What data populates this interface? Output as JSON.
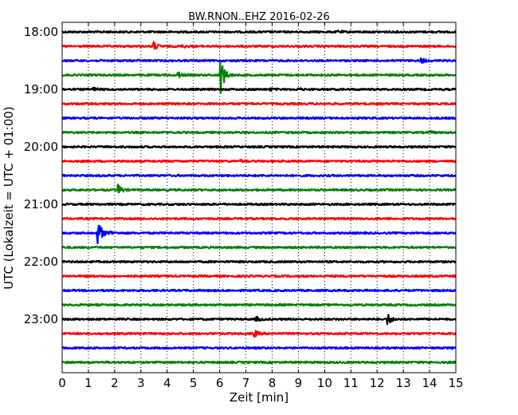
{
  "chart_data": {
    "type": "line",
    "title": "BW.RNON..EHZ 2016-02-26",
    "xlabel": "Zeit  [min]",
    "ylabel": "UTC (Lokalzeit = UTC + 01:00)",
    "xlim": [
      0,
      15
    ],
    "x_ticks": [
      "0",
      "1",
      "2",
      "3",
      "4",
      "5",
      "6",
      "7",
      "8",
      "9",
      "10",
      "11",
      "12",
      "13",
      "14",
      "15"
    ],
    "y_ticks": [
      "18:00",
      "19:00",
      "20:00",
      "21:00",
      "22:00",
      "23:00"
    ],
    "grid": "vertical dotted",
    "trace_colors": [
      "#000000",
      "#ff0000",
      "#0000ff",
      "#008000"
    ],
    "series": [
      {
        "start": "18:00",
        "color": "#000000",
        "events": [
          {
            "minute": 10.5,
            "amp": 0.1
          }
        ]
      },
      {
        "start": "18:15",
        "color": "#ff0000",
        "events": [
          {
            "minute": 3.5,
            "amp": 0.35
          },
          {
            "minute": 4.6,
            "amp": 0.1
          }
        ]
      },
      {
        "start": "18:30",
        "color": "#0000ff",
        "events": [
          {
            "minute": 13.7,
            "amp": 0.2
          }
        ]
      },
      {
        "start": "18:45",
        "color": "#008000",
        "events": [
          {
            "minute": 4.4,
            "amp": 0.3
          },
          {
            "minute": 6.05,
            "amp": 1.6
          }
        ]
      },
      {
        "start": "19:00",
        "color": "#000000",
        "events": [
          {
            "minute": 1.15,
            "amp": 0.2
          },
          {
            "minute": 7.9,
            "amp": 0.1
          },
          {
            "minute": 9.0,
            "amp": 0.1
          }
        ]
      },
      {
        "start": "19:15",
        "color": "#ff0000",
        "events": []
      },
      {
        "start": "19:30",
        "color": "#0000ff",
        "events": []
      },
      {
        "start": "19:45",
        "color": "#008000",
        "events": [
          {
            "minute": 14.0,
            "amp": 0.1
          }
        ]
      },
      {
        "start": "20:00",
        "color": "#000000",
        "events": []
      },
      {
        "start": "20:15",
        "color": "#ff0000",
        "events": [
          {
            "minute": 6.8,
            "amp": 0.1
          }
        ]
      },
      {
        "start": "20:30",
        "color": "#0000ff",
        "events": []
      },
      {
        "start": "20:45",
        "color": "#008000",
        "events": [
          {
            "minute": 2.15,
            "amp": 0.45
          }
        ]
      },
      {
        "start": "21:00",
        "color": "#000000",
        "events": []
      },
      {
        "start": "21:15",
        "color": "#ff0000",
        "events": []
      },
      {
        "start": "21:30",
        "color": "#0000ff",
        "events": [
          {
            "minute": 1.35,
            "amp": 1.4
          },
          {
            "minute": 1.8,
            "amp": 0.15
          }
        ]
      },
      {
        "start": "21:45",
        "color": "#008000",
        "events": []
      },
      {
        "start": "22:00",
        "color": "#000000",
        "events": []
      },
      {
        "start": "22:15",
        "color": "#ff0000",
        "events": []
      },
      {
        "start": "22:30",
        "color": "#0000ff",
        "events": []
      },
      {
        "start": "22:45",
        "color": "#008000",
        "events": []
      },
      {
        "start": "23:00",
        "color": "#000000",
        "events": [
          {
            "minute": 7.4,
            "amp": 0.2
          },
          {
            "minute": 12.4,
            "amp": 0.55
          }
        ]
      },
      {
        "start": "23:15",
        "color": "#ff0000",
        "events": [
          {
            "minute": 7.3,
            "amp": 0.35
          }
        ]
      },
      {
        "start": "23:30",
        "color": "#0000ff",
        "events": []
      },
      {
        "start": "23:45",
        "color": "#008000",
        "events": []
      }
    ]
  }
}
